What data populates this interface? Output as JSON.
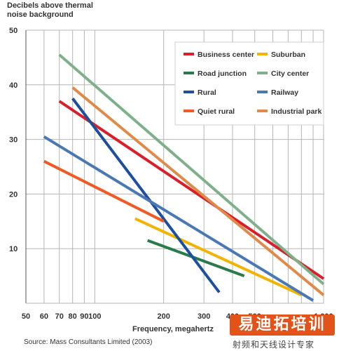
{
  "chart_data": {
    "type": "line",
    "ylabel": "Decibels above thermal\nnoise background",
    "xlabel": "Frequency, megahertz",
    "source": "Source: Mass Consultants Limited (2003)",
    "x_scale": "log",
    "xlim": [
      50,
      1000
    ],
    "ylim": [
      0,
      50
    ],
    "x_ticks": [
      50,
      60,
      70,
      80,
      90,
      100,
      200,
      300,
      400,
      500,
      1000
    ],
    "x_tick_labels": [
      "50",
      "60",
      "70",
      "80",
      "90",
      "100",
      "200",
      "300",
      "400",
      "500",
      "1,000"
    ],
    "x_gridlines": [
      50,
      60,
      70,
      80,
      90,
      100,
      200,
      300,
      400,
      500,
      600,
      700,
      800,
      900,
      1000
    ],
    "y_ticks": [
      10,
      20,
      30,
      40,
      50
    ],
    "grid": true,
    "legend_position": "top-right",
    "series": [
      {
        "name": "Business center",
        "color": "#d81f2a",
        "x": [
          70,
          1000
        ],
        "y": [
          37,
          4.5
        ]
      },
      {
        "name": "Suburban",
        "color": "#f2b400",
        "x": [
          150,
          800
        ],
        "y": [
          15.5,
          1.5
        ]
      },
      {
        "name": "Road junction",
        "color": "#2a7a4b",
        "x": [
          170,
          450
        ],
        "y": [
          11.5,
          5
        ]
      },
      {
        "name": "City center",
        "color": "#7fb08a",
        "x": [
          70,
          1000
        ],
        "y": [
          45.5,
          3.5
        ]
      },
      {
        "name": "Rural",
        "color": "#1d4f9c",
        "x": [
          80,
          350
        ],
        "y": [
          37.5,
          2
        ]
      },
      {
        "name": "Railway",
        "color": "#4a78b5",
        "x": [
          60,
          900
        ],
        "y": [
          30.5,
          0.5
        ]
      },
      {
        "name": "Quiet rural",
        "color": "#f15a24",
        "x": [
          60,
          200
        ],
        "y": [
          26,
          15
        ]
      },
      {
        "name": "Industrial park",
        "color": "#e08a4a",
        "x": [
          80,
          1000
        ],
        "y": [
          39.5,
          1.5
        ]
      }
    ]
  },
  "watermark": {
    "logo_text": "易迪拓培训",
    "sub_text": "射频和天线设计专家"
  }
}
